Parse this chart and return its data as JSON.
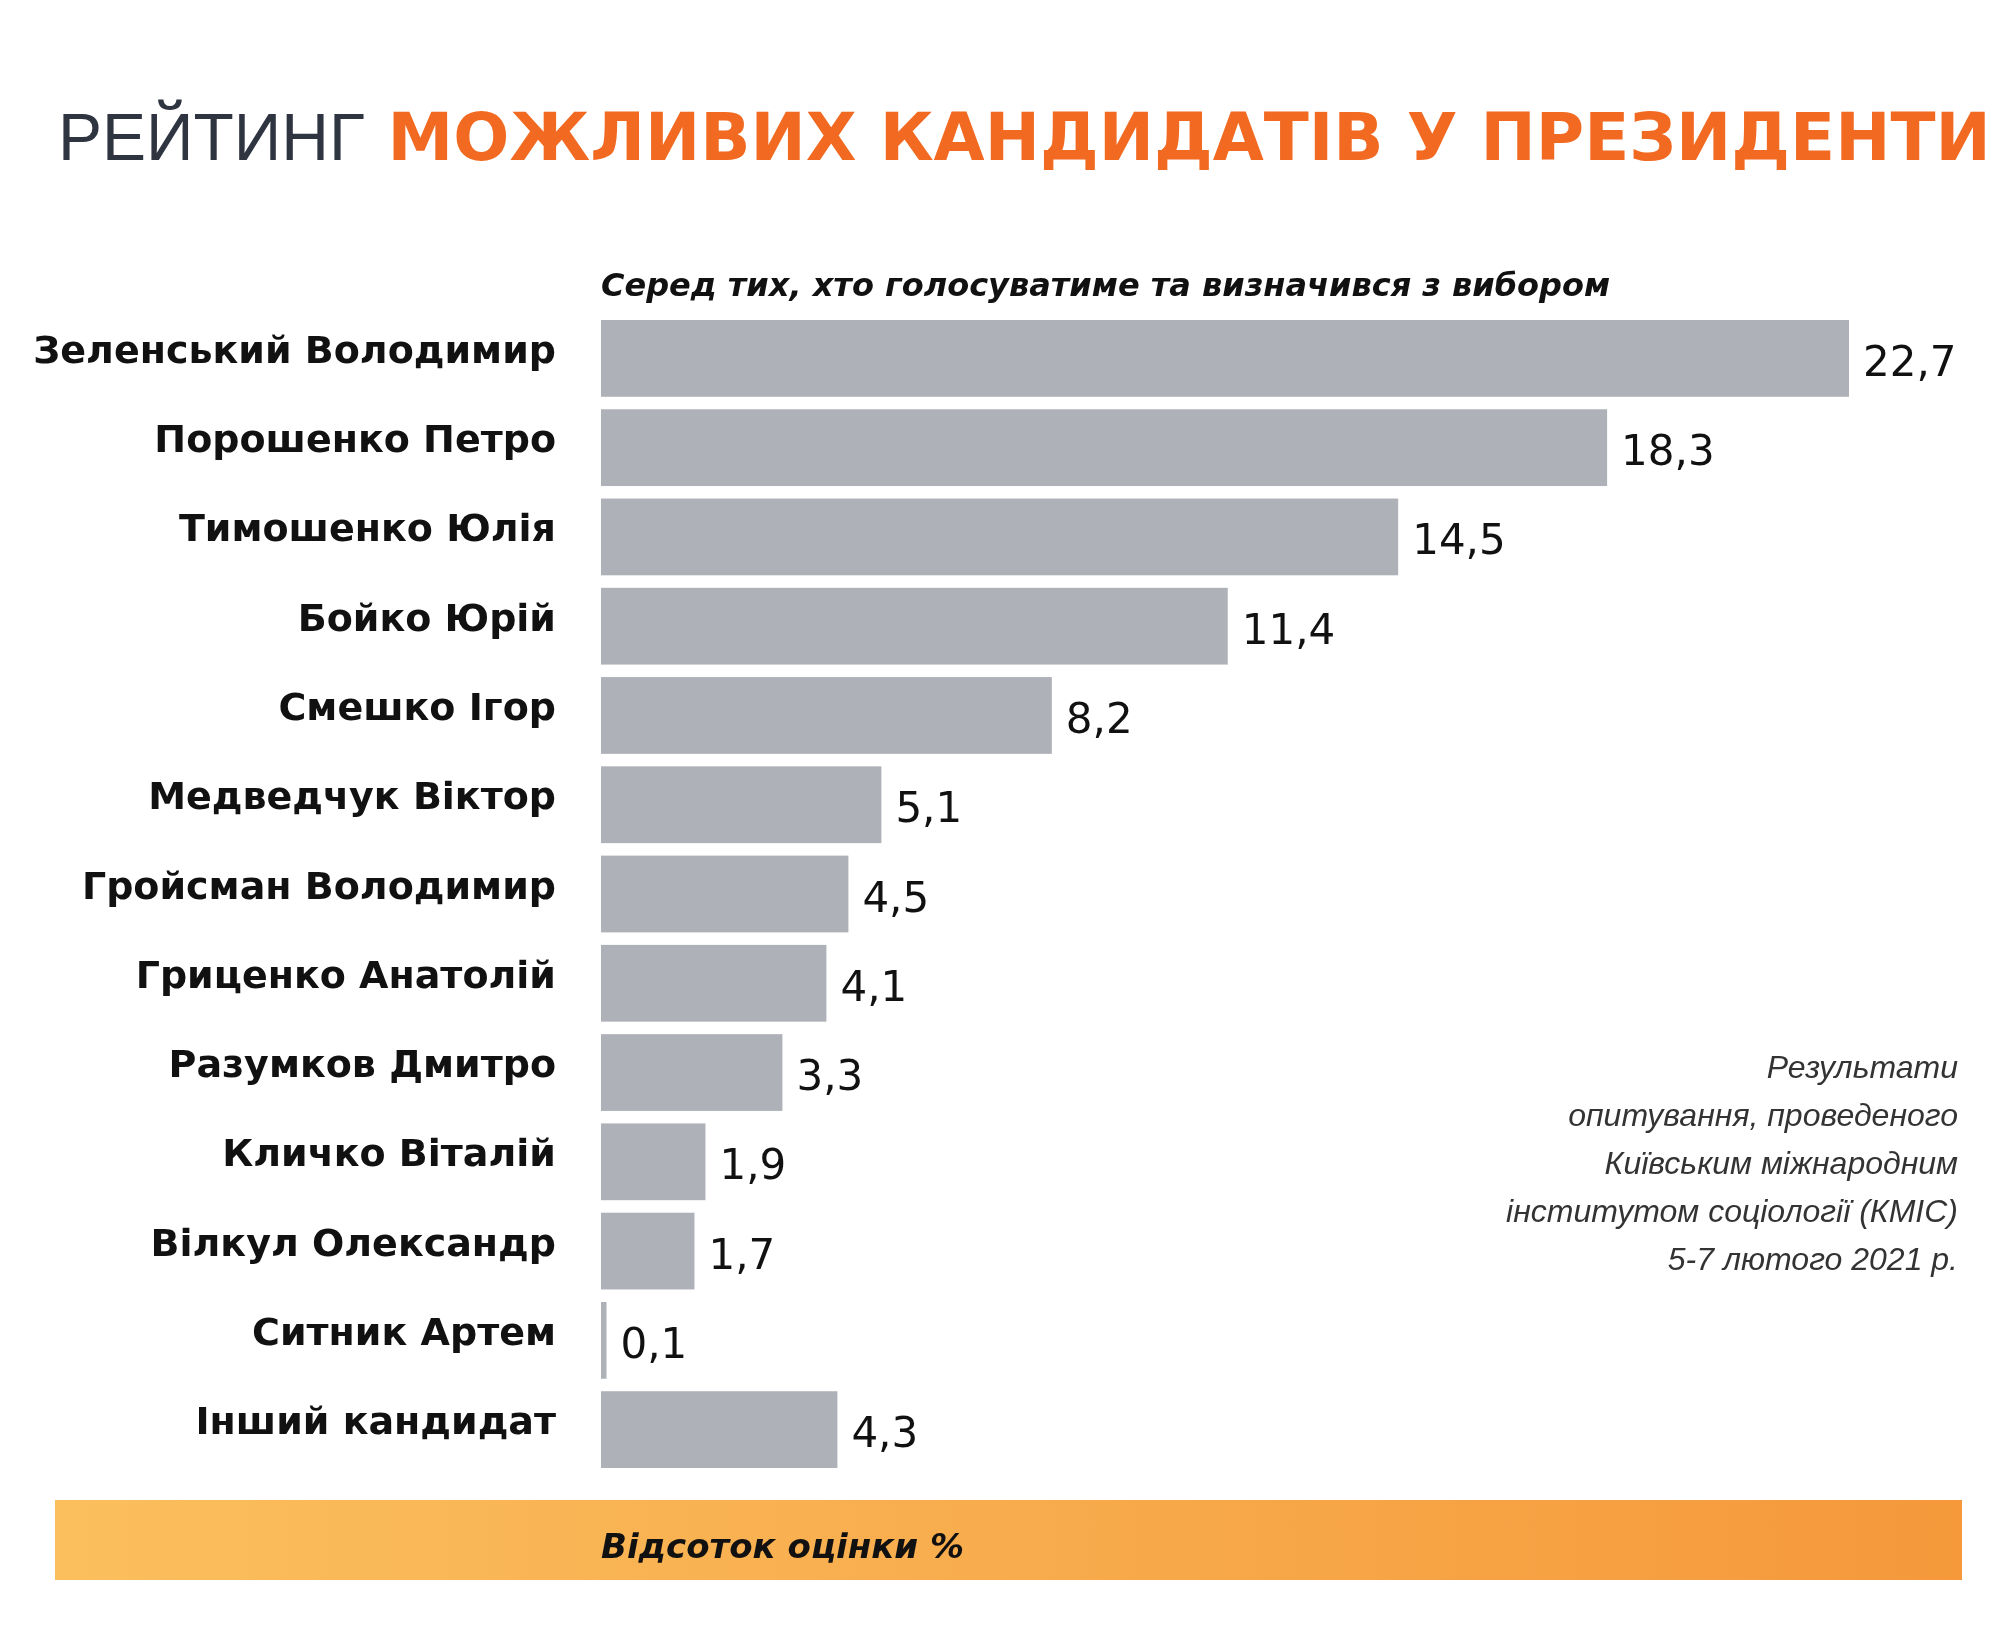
{
  "chart_data": {
    "type": "bar",
    "orientation": "horizontal",
    "title": "РЕЙТИНГ МОЖЛИВИХ КАНДИДАТІВ У ПРЕЗИДЕНТИ",
    "subtitle": "Серед тих, хто голосуватиме та визначився з вибором",
    "xlabel": "Відсоток оцінки %",
    "categories": [
      "Зеленський Володимир",
      "Порошенко Петро",
      "Тимошенко Юлія",
      "Бойко Юрій",
      "Смешко Ігор",
      "Медведчук Віктор",
      "Гройсман Володимир",
      "Гриценко Анатолій",
      "Разумков Дмитро",
      "Кличко Віталій",
      "Вілкул Олександр",
      "Ситник Артем",
      "Інший кандидат"
    ],
    "values": [
      22.7,
      18.3,
      14.5,
      11.4,
      8.2,
      5.1,
      4.5,
      4.1,
      3.3,
      1.9,
      1.7,
      0.1,
      4.3
    ],
    "value_labels": [
      "22,7",
      "18,3",
      "14,5",
      "11,4",
      "8,2",
      "5,1",
      "4,5",
      "4,1",
      "3,3",
      "1,9",
      "1,7",
      "0,1",
      "4,3"
    ],
    "color": "#afb1b8",
    "annotations": [
      "Результати\nопитування, проведеного\nКиївським міжнародним\nінститутом соціології (КМІС)\n5-7 лютого 2021 р."
    ]
  }
}
